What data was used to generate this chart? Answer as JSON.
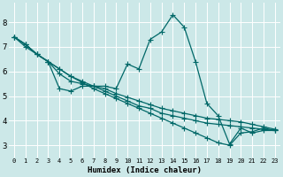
{
  "title": "",
  "xlabel": "Humidex (Indice chaleur)",
  "ylabel": "",
  "background_color": "#cce8e8",
  "grid_color": "#ffffff",
  "line_color": "#006868",
  "xlim": [
    -0.5,
    23.5
  ],
  "ylim": [
    2.5,
    8.8
  ],
  "xticks": [
    0,
    1,
    2,
    3,
    4,
    5,
    6,
    7,
    8,
    9,
    10,
    11,
    12,
    13,
    14,
    15,
    16,
    17,
    18,
    19,
    20,
    21,
    22,
    23
  ],
  "yticks": [
    3,
    4,
    5,
    6,
    7,
    8
  ],
  "lines": [
    {
      "x": [
        0,
        1,
        2,
        3,
        4,
        5,
        6,
        7,
        8,
        9,
        10,
        11,
        12,
        13,
        14,
        15,
        16,
        17,
        18,
        19,
        20,
        21,
        22,
        23
      ],
      "y": [
        7.4,
        7.1,
        6.7,
        6.4,
        5.3,
        5.2,
        5.4,
        5.4,
        5.4,
        5.3,
        6.3,
        6.1,
        7.3,
        7.6,
        8.3,
        7.8,
        6.4,
        4.7,
        4.2,
        3.05,
        3.7,
        3.5,
        3.6,
        3.6
      ]
    },
    {
      "x": [
        0,
        1,
        2,
        3,
        4,
        5,
        6,
        7,
        8,
        9,
        10,
        11,
        12,
        13,
        14,
        15,
        16,
        17,
        18,
        19,
        20,
        21,
        22,
        23
      ],
      "y": [
        7.4,
        7.0,
        6.7,
        6.4,
        6.1,
        5.8,
        5.6,
        5.4,
        5.2,
        5.0,
        4.8,
        4.6,
        4.5,
        4.3,
        4.2,
        4.1,
        4.0,
        3.9,
        3.85,
        3.8,
        3.75,
        3.7,
        3.65,
        3.6
      ]
    },
    {
      "x": [
        0,
        1,
        2,
        3,
        4,
        5,
        6,
        7,
        8,
        9,
        10,
        11,
        12,
        13,
        14,
        15,
        16,
        17,
        18,
        19,
        20,
        21,
        22,
        23
      ],
      "y": [
        7.4,
        7.1,
        6.7,
        6.4,
        5.9,
        5.6,
        5.5,
        5.4,
        5.3,
        5.1,
        4.95,
        4.8,
        4.65,
        4.5,
        4.4,
        4.3,
        4.2,
        4.1,
        4.05,
        4.0,
        3.95,
        3.85,
        3.75,
        3.65
      ]
    },
    {
      "x": [
        0,
        1,
        2,
        3,
        4,
        5,
        6,
        7,
        8,
        9,
        10,
        11,
        12,
        13,
        14,
        15,
        16,
        17,
        18,
        19,
        20,
        21,
        22,
        23
      ],
      "y": [
        7.4,
        7.1,
        6.7,
        6.4,
        6.1,
        5.8,
        5.55,
        5.3,
        5.1,
        4.9,
        4.7,
        4.5,
        4.3,
        4.1,
        3.9,
        3.7,
        3.5,
        3.3,
        3.1,
        3.0,
        3.5,
        3.55,
        3.7,
        3.6
      ]
    }
  ],
  "marker": "+",
  "markersize": 4,
  "linewidth": 0.9
}
